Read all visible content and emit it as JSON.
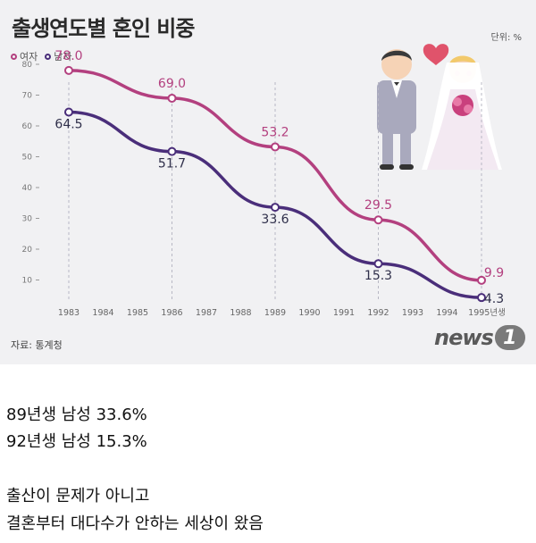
{
  "chart_data": {
    "type": "line",
    "title": "출생연도별 혼인 비중",
    "unit_label": "단위: %",
    "x": [
      "1983",
      "1984",
      "1985",
      "1986",
      "1987",
      "1988",
      "1989",
      "1990",
      "1991",
      "1992",
      "1993",
      "1994",
      "1995년생"
    ],
    "ylim": [
      0,
      85
    ],
    "yticks": [
      "10",
      "20",
      "30",
      "40",
      "50",
      "60",
      "70",
      "80"
    ],
    "series": [
      {
        "name": "여자",
        "color": "#b3407f",
        "points": [
          {
            "x": "1983",
            "y": 78.0,
            "label": "78.0"
          },
          {
            "x": "1986",
            "y": 69.0,
            "label": "69.0"
          },
          {
            "x": "1989",
            "y": 53.2,
            "label": "53.2"
          },
          {
            "x": "1992",
            "y": 29.5,
            "label": "29.5"
          },
          {
            "x": "1995년생",
            "y": 9.9,
            "label": "9.9"
          }
        ]
      },
      {
        "name": "남자",
        "color": "#4a2e7a",
        "points": [
          {
            "x": "1983",
            "y": 64.5,
            "label": "64.5"
          },
          {
            "x": "1986",
            "y": 51.7,
            "label": "51.7"
          },
          {
            "x": "1989",
            "y": 33.6,
            "label": "33.6"
          },
          {
            "x": "1992",
            "y": 15.3,
            "label": "15.3"
          },
          {
            "x": "1995년생",
            "y": 4.3,
            "label": "4.3"
          }
        ]
      }
    ],
    "source": "자료: 통계청",
    "grid": false,
    "legend": "top-left"
  },
  "brand": {
    "word": "news",
    "mark": "1"
  },
  "post": {
    "lines": [
      "89년생 남성 33.6%",
      "92년생 남성 15.3%",
      "출산이 문제가 아니고",
      "결혼부터 대다수가 안하는 세상이 왔음"
    ]
  }
}
